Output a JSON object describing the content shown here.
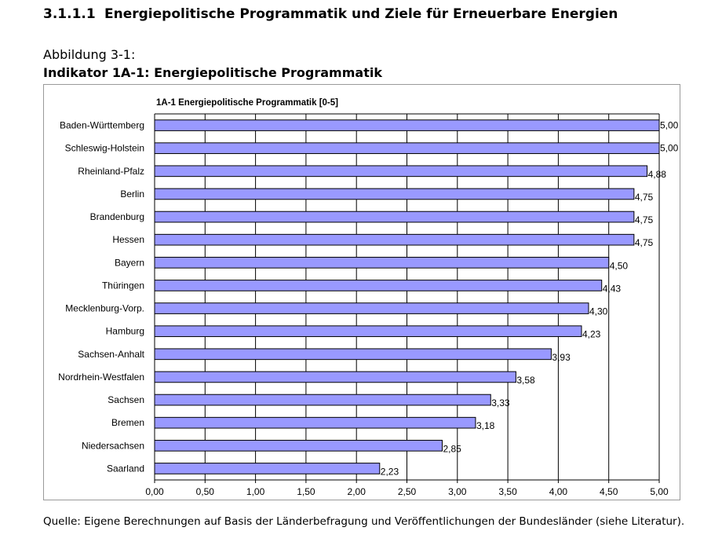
{
  "heading": {
    "number": "3.1.1.1",
    "title": "Energiepolitische Programmatik und Ziele für Erneuerbare Energien"
  },
  "figure": {
    "label": "Abbildung 3-1:",
    "title": "Indikator 1A-1: Energiepolitische Programmatik"
  },
  "source_note": "Quelle:  Eigene Berechnungen auf Basis der Länderbefragung und Veröffentlichungen der Bundesländer (siehe Literatur).",
  "colors": {
    "bar_fill": "#9999ff",
    "bar_stroke": "#000000",
    "grid": "#000000",
    "frame": "#9a9a9a"
  },
  "chart_data": {
    "type": "bar",
    "orientation": "horizontal",
    "title": "1A-1  Energiepolitische Programmatik [0-5]",
    "xlabel": "",
    "ylabel": "",
    "xlim": [
      0,
      5
    ],
    "grid": true,
    "ticks": [
      0,
      0.5,
      1,
      1.5,
      2,
      2.5,
      3,
      3.5,
      4,
      4.5,
      5
    ],
    "tick_labels": [
      "0,00",
      "0,50",
      "1,00",
      "1,50",
      "2,00",
      "2,50",
      "3,00",
      "3,50",
      "4,00",
      "4,50",
      "5,00"
    ],
    "categories": [
      "Baden-Württemberg",
      "Schleswig-Holstein",
      "Rheinland-Pfalz",
      "Berlin",
      "Brandenburg",
      "Hessen",
      "Bayern",
      "Thüringen",
      "Mecklenburg-Vorp.",
      "Hamburg",
      "Sachsen-Anhalt",
      "Nordrhein-Westfalen",
      "Sachsen",
      "Bremen",
      "Niedersachsen",
      "Saarland"
    ],
    "values": [
      5.0,
      5.0,
      4.88,
      4.75,
      4.75,
      4.75,
      4.5,
      4.43,
      4.3,
      4.23,
      3.93,
      3.58,
      3.33,
      3.18,
      2.85,
      2.23
    ],
    "value_labels": [
      "5,00",
      "5,00",
      "4,88",
      "4,75",
      "4,75",
      "4,75",
      "4,50",
      "4,43",
      "4,30",
      "4,23",
      "3,93",
      "3,58",
      "3,33",
      "3,18",
      "2,85",
      "2,23"
    ]
  }
}
